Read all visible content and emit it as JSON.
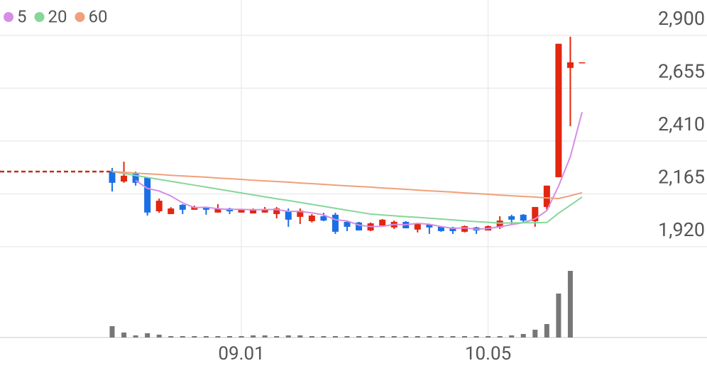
{
  "chart_data": {
    "type": "candlestick",
    "categories": [
      null,
      null,
      null,
      null,
      null,
      null,
      null,
      null,
      null,
      null,
      null,
      "09.01",
      null,
      null,
      null,
      null,
      null,
      null,
      null,
      null,
      null,
      null,
      null,
      null,
      null,
      null,
      null,
      null,
      null,
      null,
      null,
      null,
      "10.05",
      null,
      null,
      null,
      null,
      null,
      null,
      null,
      null
    ],
    "open": [
      2268,
      2222,
      2258,
      2242,
      2084,
      2071,
      2114,
      2091,
      2104,
      2078,
      2097,
      2078,
      2074,
      2078,
      2071,
      2084,
      2058,
      2038,
      2061,
      2068,
      2035,
      2032,
      1995,
      2018,
      2009,
      2035,
      1999,
      2022,
      2012,
      2009,
      1989,
      2009,
      1995,
      2009,
      2061,
      2068,
      2038,
      2104,
      2242,
      2749,
      2772
    ],
    "high": [
      2285,
      2314,
      2268,
      2242,
      2143,
      2103,
      2117,
      2110,
      2104,
      2117,
      2100,
      2094,
      2097,
      2104,
      2104,
      2097,
      2097,
      2071,
      2077,
      2077,
      2038,
      2035,
      2032,
      2048,
      2041,
      2038,
      2028,
      2025,
      2015,
      2012,
      2018,
      2012,
      2018,
      2061,
      2068,
      2071,
      2104,
      2203,
      2861,
      2894,
      2775
    ],
    "low": [
      2176,
      2216,
      2203,
      2064,
      2077,
      2071,
      2071,
      2091,
      2068,
      2078,
      2071,
      2078,
      2074,
      2078,
      2051,
      2012,
      2025,
      2032,
      2038,
      1979,
      1992,
      1995,
      1992,
      2018,
      2002,
      2005,
      1986,
      1979,
      1989,
      1979,
      1986,
      1979,
      1995,
      2002,
      2022,
      2028,
      2012,
      2091,
      2242,
      2479,
      2772
    ],
    "close": [
      2216,
      2249,
      2216,
      2078,
      2133,
      2097,
      2091,
      2104,
      2091,
      2097,
      2084,
      2091,
      2094,
      2094,
      2097,
      2045,
      2087,
      2064,
      2041,
      1989,
      2012,
      1995,
      2028,
      2045,
      2035,
      2005,
      2025,
      2009,
      1992,
      1992,
      2015,
      1995,
      2015,
      2041,
      2045,
      2041,
      2104,
      2203,
      2861,
      2775,
      2775
    ],
    "volume": [
      16,
      7,
      3,
      6,
      4,
      2,
      2,
      2,
      2,
      2,
      2,
      2,
      3,
      3,
      2,
      3,
      3,
      2,
      2,
      2,
      2,
      2,
      2,
      2,
      2,
      2,
      2,
      2,
      2,
      2,
      2,
      2,
      2,
      2,
      3,
      5,
      11,
      19,
      62,
      94,
      0
    ],
    "up_color": "#e2260f",
    "down_color": "#1a6fe6",
    "volume_color": "#777777",
    "baseline": 2268,
    "series": [
      {
        "name": "5",
        "color": "#d58ee3",
        "values": [
          null,
          null,
          2227,
          2190,
          2178,
          2155,
          2123,
          2101,
          2103,
          2096,
          2093,
          2093,
          2091,
          2092,
          2092,
          2084,
          2083,
          2077,
          2067,
          2045,
          2039,
          2020,
          2013,
          2014,
          2023,
          2022,
          2028,
          2024,
          2013,
          2005,
          2007,
          2001,
          2004,
          2012,
          2022,
          2031,
          2049,
          2087,
          2201,
          2337,
          2544
        ]
      },
      {
        "name": "20",
        "color": "#86d79a",
        "values": [
          2268,
          2259,
          2250,
          2241,
          2232,
          2223,
          2214,
          2205,
          2196,
          2187,
          2178,
          2169,
          2160,
          2151,
          2142,
          2134,
          2125,
          2116,
          2107,
          2098,
          2089,
          2080,
          2071,
          2067,
          2063,
          2059,
          2056,
          2052,
          2048,
          2044,
          2040,
          2036,
          2033,
          2029,
          2030,
          2031,
          2031,
          2032,
          2075,
          2112,
          2150
        ]
      },
      {
        "name": "60",
        "color": "#f0a07a",
        "values": [
          2268,
          2265,
          2261,
          2258,
          2255,
          2251,
          2248,
          2245,
          2242,
          2238,
          2235,
          2232,
          2228,
          2225,
          2222,
          2219,
          2215,
          2212,
          2209,
          2205,
          2202,
          2199,
          2196,
          2192,
          2189,
          2186,
          2182,
          2179,
          2176,
          2173,
          2169,
          2166,
          2163,
          2159,
          2156,
          2153,
          2150,
          2146,
          2143,
          2156,
          2170
        ]
      }
    ],
    "ylim": [
      1880,
      3064
    ],
    "yticks": [
      {
        "value": 1920,
        "label": "1,920"
      },
      {
        "value": 2165,
        "label": "2,165"
      },
      {
        "value": 2410,
        "label": "2,410"
      },
      {
        "value": 2655,
        "label": "2,655"
      },
      {
        "value": 2900,
        "label": "2,900"
      }
    ],
    "grid": true
  }
}
